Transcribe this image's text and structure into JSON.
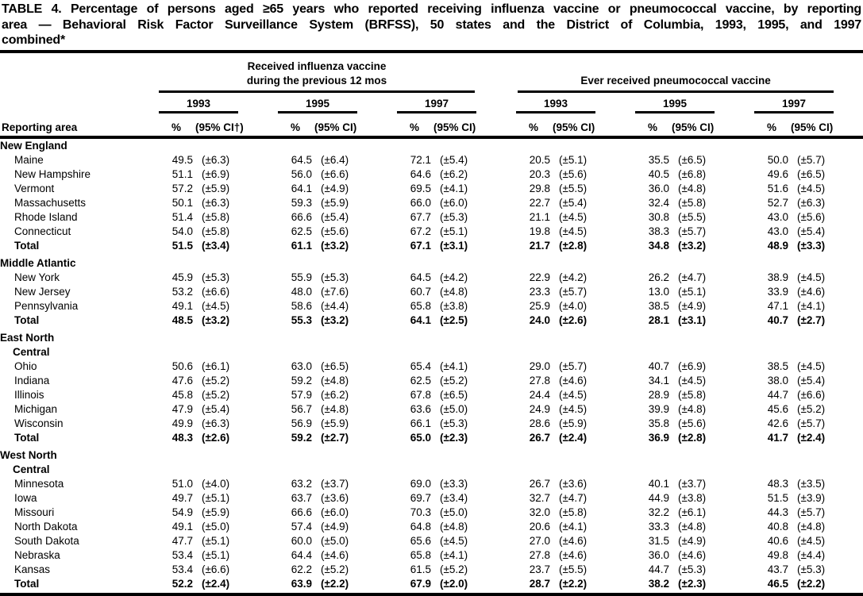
{
  "title": {
    "lines": [
      "TABLE 4. Percentage of persons aged ≥65 years who reported receiving influenza vaccine or pneumococcal vaccine, by reporting",
      "area — Behavioral Risk Factor Surveillance System (BRFSS), 50 states and the District of Columbia, 1993, 1995, and 1997",
      "combined*"
    ]
  },
  "table": {
    "reporting_area_label": "Reporting area",
    "groups": [
      {
        "heading_lines": [
          "Received influenza vaccine",
          "during the previous 12 mos"
        ],
        "years": [
          {
            "year": "1993",
            "pct": "%",
            "ci": "(95% CI†)"
          },
          {
            "year": "1995",
            "pct": "%",
            "ci": "(95% CI)"
          },
          {
            "year": "1997",
            "pct": "%",
            "ci": "(95% CI)"
          }
        ]
      },
      {
        "heading_lines": [
          "Ever received pneumococcal vaccine"
        ],
        "years": [
          {
            "year": "1993",
            "pct": "%",
            "ci": "(95% CI)"
          },
          {
            "year": "1995",
            "pct": "%",
            "ci": "(95% CI)"
          },
          {
            "year": "1997",
            "pct": "%",
            "ci": "(95% CI)"
          }
        ]
      }
    ],
    "sections": [
      {
        "name_lines": [
          "New England"
        ],
        "rows": [
          {
            "area": "Maine",
            "bold": false,
            "values": [
              "49.5",
              "(±6.3)",
              "64.5",
              "(±6.4)",
              "72.1",
              "(±5.4)",
              "20.5",
              "(±5.1)",
              "35.5",
              "(±6.5)",
              "50.0",
              "(±5.7)"
            ]
          },
          {
            "area": "New Hampshire",
            "bold": false,
            "values": [
              "51.1",
              "(±6.9)",
              "56.0",
              "(±6.6)",
              "64.6",
              "(±6.2)",
              "20.3",
              "(±5.6)",
              "40.5",
              "(±6.8)",
              "49.6",
              "(±6.5)"
            ]
          },
          {
            "area": "Vermont",
            "bold": false,
            "values": [
              "57.2",
              "(±5.9)",
              "64.1",
              "(±4.9)",
              "69.5",
              "(±4.1)",
              "29.8",
              "(±5.5)",
              "36.0",
              "(±4.8)",
              "51.6",
              "(±4.5)"
            ]
          },
          {
            "area": "Massachusetts",
            "bold": false,
            "values": [
              "50.1",
              "(±6.3)",
              "59.3",
              "(±5.9)",
              "66.0",
              "(±6.0)",
              "22.7",
              "(±5.4)",
              "32.4",
              "(±5.8)",
              "52.7",
              "(±6.3)"
            ]
          },
          {
            "area": "Rhode Island",
            "bold": false,
            "values": [
              "51.4",
              "(±5.8)",
              "66.6",
              "(±5.4)",
              "67.7",
              "(±5.3)",
              "21.1",
              "(±4.5)",
              "30.8",
              "(±5.5)",
              "43.0",
              "(±5.6)"
            ]
          },
          {
            "area": "Connecticut",
            "bold": false,
            "values": [
              "54.0",
              "(±5.8)",
              "62.5",
              "(±5.6)",
              "67.2",
              "(±5.1)",
              "19.8",
              "(±4.5)",
              "38.3",
              "(±5.7)",
              "43.0",
              "(±5.4)"
            ]
          },
          {
            "area": "Total",
            "bold": true,
            "values": [
              "51.5",
              "(±3.4)",
              "61.1",
              "(±3.2)",
              "67.1",
              "(±3.1)",
              "21.7",
              "(±2.8)",
              "34.8",
              "(±3.2)",
              "48.9",
              "(±3.3)"
            ]
          }
        ]
      },
      {
        "name_lines": [
          "Middle Atlantic"
        ],
        "rows": [
          {
            "area": "New York",
            "bold": false,
            "values": [
              "45.9",
              "(±5.3)",
              "55.9",
              "(±5.3)",
              "64.5",
              "(±4.2)",
              "22.9",
              "(±4.2)",
              "26.2",
              "(±4.7)",
              "38.9",
              "(±4.5)"
            ]
          },
          {
            "area": "New Jersey",
            "bold": false,
            "values": [
              "53.2",
              "(±6.6)",
              "48.0",
              "(±7.6)",
              "60.7",
              "(±4.8)",
              "23.3",
              "(±5.7)",
              "13.0",
              "(±5.1)",
              "33.9",
              "(±4.6)"
            ]
          },
          {
            "area": "Pennsylvania",
            "bold": false,
            "values": [
              "49.1",
              "(±4.5)",
              "58.6",
              "(±4.4)",
              "65.8",
              "(±3.8)",
              "25.9",
              "(±4.0)",
              "38.5",
              "(±4.9)",
              "47.1",
              "(±4.1)"
            ]
          },
          {
            "area": "Total",
            "bold": true,
            "values": [
              "48.5",
              "(±3.2)",
              "55.3",
              "(±3.2)",
              "64.1",
              "(±2.5)",
              "24.0",
              "(±2.6)",
              "28.1",
              "(±3.1)",
              "40.7",
              "(±2.7)"
            ]
          }
        ]
      },
      {
        "name_lines": [
          "East North",
          "Central"
        ],
        "rows": [
          {
            "area": "Ohio",
            "bold": false,
            "values": [
              "50.6",
              "(±6.1)",
              "63.0",
              "(±6.5)",
              "65.4",
              "(±4.1)",
              "29.0",
              "(±5.7)",
              "40.7",
              "(±6.9)",
              "38.5",
              "(±4.5)"
            ]
          },
          {
            "area": "Indiana",
            "bold": false,
            "values": [
              "47.6",
              "(±5.2)",
              "59.2",
              "(±4.8)",
              "62.5",
              "(±5.2)",
              "27.8",
              "(±4.6)",
              "34.1",
              "(±4.5)",
              "38.0",
              "(±5.4)"
            ]
          },
          {
            "area": "Illinois",
            "bold": false,
            "values": [
              "45.8",
              "(±5.2)",
              "57.9",
              "(±6.2)",
              "67.8",
              "(±6.5)",
              "24.4",
              "(±4.5)",
              "28.9",
              "(±5.8)",
              "44.7",
              "(±6.6)"
            ]
          },
          {
            "area": "Michigan",
            "bold": false,
            "values": [
              "47.9",
              "(±5.4)",
              "56.7",
              "(±4.8)",
              "63.6",
              "(±5.0)",
              "24.9",
              "(±4.5)",
              "39.9",
              "(±4.8)",
              "45.6",
              "(±5.2)"
            ]
          },
          {
            "area": "Wisconsin",
            "bold": false,
            "values": [
              "49.9",
              "(±6.3)",
              "56.9",
              "(±5.9)",
              "66.1",
              "(±5.3)",
              "28.6",
              "(±5.9)",
              "35.8",
              "(±5.6)",
              "42.6",
              "(±5.7)"
            ]
          },
          {
            "area": "Total",
            "bold": true,
            "values": [
              "48.3",
              "(±2.6)",
              "59.2",
              "(±2.7)",
              "65.0",
              "(±2.3)",
              "26.7",
              "(±2.4)",
              "36.9",
              "(±2.8)",
              "41.7",
              "(±2.4)"
            ]
          }
        ]
      },
      {
        "name_lines": [
          "West North",
          "Central"
        ],
        "rows": [
          {
            "area": "Minnesota",
            "bold": false,
            "values": [
              "51.0",
              "(±4.0)",
              "63.2",
              "(±3.7)",
              "69.0",
              "(±3.3)",
              "26.7",
              "(±3.6)",
              "40.1",
              "(±3.7)",
              "48.3",
              "(±3.5)"
            ]
          },
          {
            "area": "Iowa",
            "bold": false,
            "values": [
              "49.7",
              "(±5.1)",
              "63.7",
              "(±3.6)",
              "69.7",
              "(±3.4)",
              "32.7",
              "(±4.7)",
              "44.9",
              "(±3.8)",
              "51.5",
              "(±3.9)"
            ]
          },
          {
            "area": "Missouri",
            "bold": false,
            "values": [
              "54.9",
              "(±5.9)",
              "66.6",
              "(±6.0)",
              "70.3",
              "(±5.0)",
              "32.0",
              "(±5.8)",
              "32.2",
              "(±6.1)",
              "44.3",
              "(±5.7)"
            ]
          },
          {
            "area": "North Dakota",
            "bold": false,
            "values": [
              "49.1",
              "(±5.0)",
              "57.4",
              "(±4.9)",
              "64.8",
              "(±4.8)",
              "20.6",
              "(±4.1)",
              "33.3",
              "(±4.8)",
              "40.8",
              "(±4.8)"
            ]
          },
          {
            "area": "South Dakota",
            "bold": false,
            "values": [
              "47.7",
              "(±5.1)",
              "60.0",
              "(±5.0)",
              "65.6",
              "(±4.5)",
              "27.0",
              "(±4.6)",
              "31.5",
              "(±4.9)",
              "40.6",
              "(±4.5)"
            ]
          },
          {
            "area": "Nebraska",
            "bold": false,
            "values": [
              "53.4",
              "(±5.1)",
              "64.4",
              "(±4.6)",
              "65.8",
              "(±4.1)",
              "27.8",
              "(±4.6)",
              "36.0",
              "(±4.6)",
              "49.8",
              "(±4.4)"
            ]
          },
          {
            "area": "Kansas",
            "bold": false,
            "values": [
              "53.4",
              "(±6.6)",
              "62.2",
              "(±5.2)",
              "61.5",
              "(±5.2)",
              "23.7",
              "(±5.5)",
              "44.7",
              "(±5.3)",
              "43.7",
              "(±5.3)"
            ]
          },
          {
            "area": "Total",
            "bold": true,
            "values": [
              "52.2",
              "(±2.4)",
              "63.9",
              "(±2.2)",
              "67.9",
              "(±2.0)",
              "28.7",
              "(±2.2)",
              "38.2",
              "(±2.3)",
              "46.5",
              "(±2.2)"
            ]
          }
        ]
      }
    ]
  }
}
